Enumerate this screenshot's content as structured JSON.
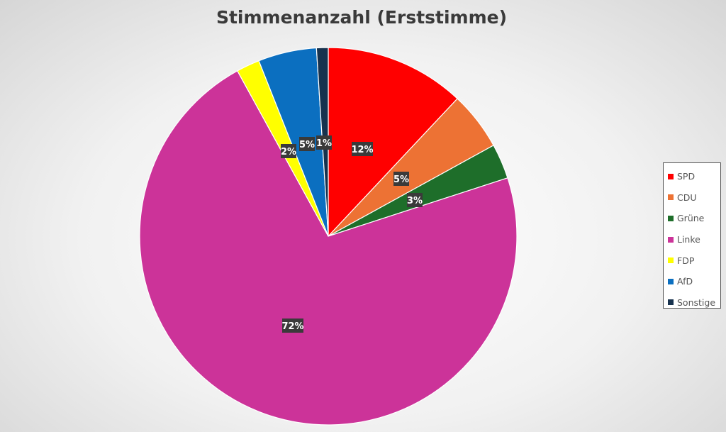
{
  "chart_data": {
    "type": "pie",
    "title": "Stimmenanzahl (Erststimme)",
    "slices": [
      {
        "name": "SPD",
        "value": 12,
        "label": "12%",
        "color": "#ff0000"
      },
      {
        "name": "CDU",
        "value": 5,
        "label": "5%",
        "color": "#ed7234"
      },
      {
        "name": "Grüne",
        "value": 3,
        "label": "3%",
        "color": "#1e6e2a"
      },
      {
        "name": "Linke",
        "value": 72,
        "label": "72%",
        "color": "#cc3399"
      },
      {
        "name": "FDP",
        "value": 2,
        "label": "2%",
        "color": "#ffff00"
      },
      {
        "name": "AfD",
        "value": 5,
        "label": "5%",
        "color": "#0b6fc0"
      },
      {
        "name": "Sonstige",
        "value": 1,
        "label": "1%",
        "color": "#17324e"
      }
    ],
    "legend": "right",
    "data_label_style": {
      "background": "#3a3a3a",
      "color": "#ffffff"
    }
  }
}
